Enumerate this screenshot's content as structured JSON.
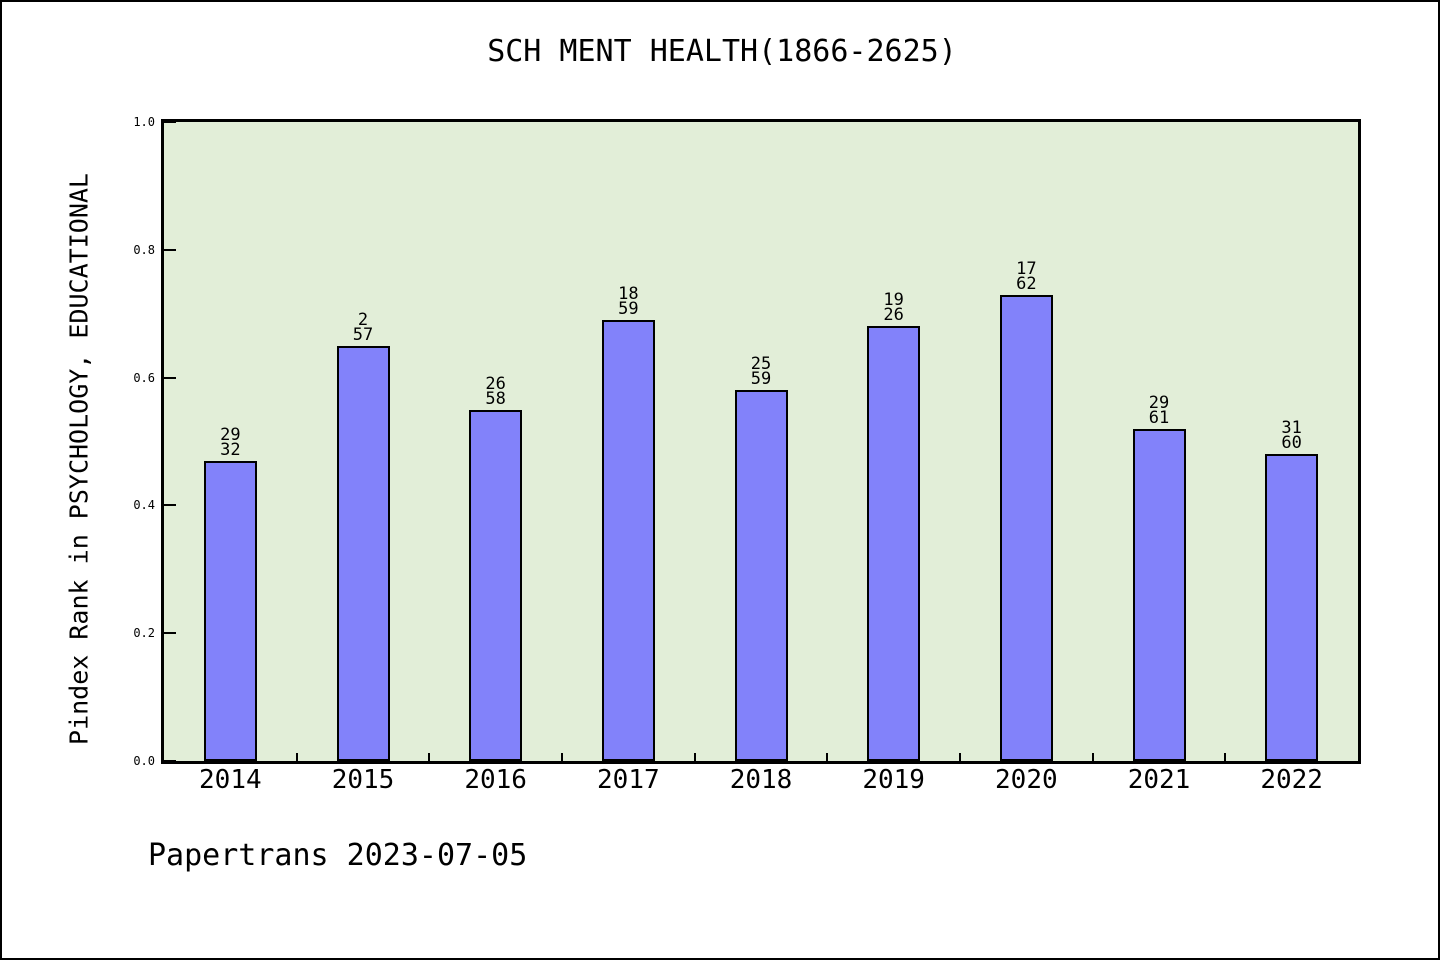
{
  "footer": "Papertrans 2023-07-05",
  "chart_data": {
    "type": "bar",
    "title": "SCH MENT HEALTH(1866-2625)",
    "ylabel": "Pindex Rank in PSYCHOLOGY, EDUCATIONAL",
    "xlabel": "",
    "categories": [
      "2014",
      "2015",
      "2016",
      "2017",
      "2018",
      "2019",
      "2020",
      "2021",
      "2022"
    ],
    "values": [
      0.47,
      0.65,
      0.55,
      0.69,
      0.58,
      0.68,
      0.73,
      0.52,
      0.48
    ],
    "bar_labels": [
      [
        "29",
        "32"
      ],
      [
        "2",
        "57"
      ],
      [
        "26",
        "58"
      ],
      [
        "18",
        "59"
      ],
      [
        "25",
        "59"
      ],
      [
        "19",
        "26"
      ],
      [
        "17",
        "62"
      ],
      [
        "29",
        "61"
      ],
      [
        "31",
        "60"
      ]
    ],
    "ylim": [
      0.0,
      1.0
    ],
    "yticks": [
      0.0,
      0.2,
      0.4,
      0.6,
      0.8,
      1.0
    ],
    "ytick_labels": [
      "0.0",
      "0.2",
      "0.4",
      "0.6",
      "0.8",
      "1.0"
    ],
    "grid": false,
    "legend": null,
    "layout": {
      "legend_position": "none",
      "bar_outline": true
    },
    "colors": {
      "bar_fill": "#8282fa",
      "bar_edge": "#000000",
      "plot_background": "#e2eed8",
      "page_background": "#ffffff",
      "text": "#000000"
    }
  }
}
